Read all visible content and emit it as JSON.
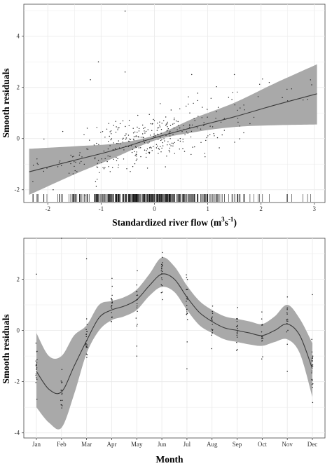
{
  "chart_data": [
    {
      "type": "scatter",
      "xlabel_main": "Standardized river flow (m",
      "xlabel_sup1": "3",
      "xlabel_mid": "s",
      "xlabel_sup2": "-1",
      "xlabel_end": ")",
      "ylabel": "Smooth residuals",
      "xlim": [
        -2.45,
        3.2
      ],
      "ylim": [
        -2.5,
        5.25
      ],
      "xticks": [
        -2,
        -1,
        0,
        1,
        2,
        3
      ],
      "xtick_labels": [
        "-2",
        "-1",
        "0",
        "1",
        "2",
        "3"
      ],
      "yticks": [
        -2,
        0,
        2,
        4
      ],
      "ytick_labels": [
        "-2",
        "0",
        "2",
        "4"
      ],
      "grid": true,
      "fit": {
        "x": [
          -2.35,
          -1.5,
          -0.75,
          0,
          0.75,
          1.5,
          2.25,
          3.05
        ],
        "y": [
          -1.3,
          -0.85,
          -0.45,
          0.03,
          0.45,
          0.85,
          1.3,
          1.75
        ],
        "lower": [
          -2.2,
          -1.4,
          -0.75,
          -0.08,
          0.25,
          0.45,
          0.52,
          0.55
        ],
        "upper": [
          -0.4,
          -0.3,
          -0.2,
          0.12,
          0.8,
          1.4,
          2.15,
          2.9
        ]
      },
      "points_note": "approx. 350 residual points scattered around the fit",
      "rug": true
    },
    {
      "type": "line",
      "xlabel": "Month",
      "ylabel": "Smooth residuals",
      "categories": [
        "Jan",
        "Feb",
        "Mar",
        "Apr",
        "May",
        "Jun",
        "Jul",
        "Aug",
        "Sep",
        "Oct",
        "Nov",
        "Dec"
      ],
      "yticks": [
        -4,
        -2,
        0,
        2
      ],
      "ytick_labels": [
        "-4",
        "-2",
        "0",
        "2"
      ],
      "ylim": [
        -4.2,
        3.6
      ],
      "grid": true,
      "fit": {
        "x": [
          1,
          1.5,
          2,
          2.5,
          3,
          3.5,
          4,
          4.5,
          5,
          5.5,
          6,
          6.5,
          7,
          7.5,
          8,
          8.5,
          9,
          9.5,
          10,
          10.5,
          11,
          11.5,
          12
        ],
        "y": [
          -1.6,
          -2.3,
          -2.4,
          -1.4,
          -0.4,
          0.5,
          0.8,
          0.95,
          1.2,
          1.75,
          2.2,
          2.0,
          1.3,
          0.7,
          0.35,
          0.1,
          0.0,
          -0.1,
          -0.2,
          0.0,
          0.25,
          -0.2,
          -1.5
        ],
        "lower": [
          -3.0,
          -3.6,
          -3.8,
          -2.5,
          -0.9,
          0.0,
          0.4,
          0.55,
          0.8,
          1.35,
          1.7,
          1.5,
          0.8,
          0.2,
          -0.1,
          -0.35,
          -0.45,
          -0.55,
          -0.6,
          -0.45,
          -0.35,
          -0.9,
          -2.6
        ],
        "upper": [
          -0.1,
          -1.0,
          -1.0,
          -0.2,
          0.2,
          1.0,
          1.15,
          1.3,
          1.6,
          2.2,
          2.85,
          2.5,
          1.75,
          1.15,
          0.8,
          0.55,
          0.45,
          0.35,
          0.25,
          0.55,
          1.0,
          0.45,
          -0.5
        ]
      },
      "points_note": "vertical columns of residual points at each month"
    }
  ]
}
